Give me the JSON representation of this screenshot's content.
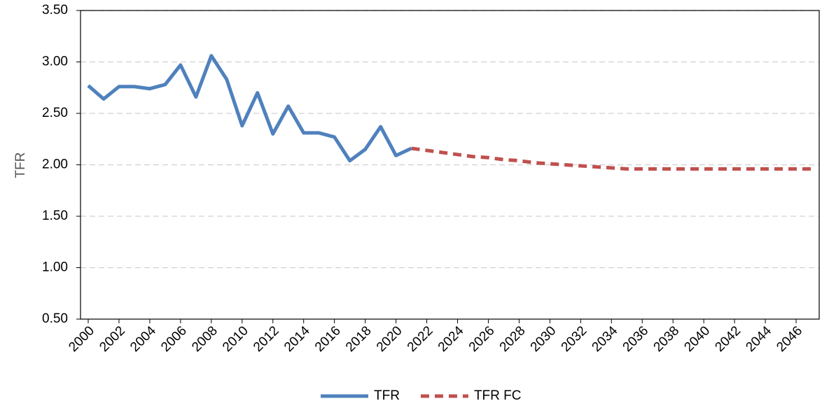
{
  "chart_data": {
    "type": "line",
    "y_label": "TFR",
    "x": [
      2000,
      2001,
      2002,
      2003,
      2004,
      2005,
      2006,
      2007,
      2008,
      2009,
      2010,
      2011,
      2012,
      2013,
      2014,
      2015,
      2016,
      2017,
      2018,
      2019,
      2020,
      2021,
      2022,
      2023,
      2024,
      2025,
      2026,
      2027,
      2028,
      2029,
      2030,
      2031,
      2032,
      2033,
      2034,
      2035,
      2036,
      2037,
      2038,
      2039,
      2040,
      2041,
      2042,
      2043,
      2044,
      2045,
      2046,
      2047
    ],
    "xlim": [
      1999.5,
      2047.5
    ],
    "xticks": [
      2000,
      2002,
      2004,
      2006,
      2008,
      2010,
      2012,
      2014,
      2016,
      2018,
      2020,
      2022,
      2024,
      2026,
      2028,
      2030,
      2032,
      2034,
      2036,
      2038,
      2040,
      2042,
      2044,
      2046
    ],
    "ylim": [
      0.5,
      3.5
    ],
    "yticks": [
      {
        "value": 0.5,
        "label": "0.50"
      },
      {
        "value": 1,
        "label": "1.00"
      },
      {
        "value": 1.5,
        "label": "1.50"
      },
      {
        "value": 2,
        "label": "2.00"
      },
      {
        "value": 2.5,
        "label": "2.50"
      },
      {
        "value": 3,
        "label": "3.00"
      },
      {
        "value": 3.5,
        "label": "3.50"
      }
    ],
    "grid": true,
    "legend": "bottom",
    "series": [
      {
        "name": "TFR",
        "color": "#4f81bd",
        "dash": false,
        "values": [
          2.77,
          2.64,
          2.76,
          2.76,
          2.74,
          2.78,
          2.97,
          2.66,
          3.06,
          2.83,
          2.38,
          2.7,
          2.3,
          2.57,
          2.31,
          2.31,
          2.27,
          2.04,
          2.15,
          2.37,
          2.09,
          2.16,
          null,
          null,
          null,
          null,
          null,
          null,
          null,
          null,
          null,
          null,
          null,
          null,
          null,
          null,
          null,
          null,
          null,
          null,
          null,
          null,
          null,
          null,
          null,
          null,
          null,
          null
        ]
      },
      {
        "name": "TFR FC",
        "color": "#c0504d",
        "dash": true,
        "values": [
          null,
          null,
          null,
          null,
          null,
          null,
          null,
          null,
          null,
          null,
          null,
          null,
          null,
          null,
          null,
          null,
          null,
          null,
          null,
          null,
          null,
          2.16,
          2.14,
          2.12,
          2.1,
          2.08,
          2.07,
          2.05,
          2.04,
          2.02,
          2.01,
          2.0,
          1.99,
          1.98,
          1.97,
          1.96,
          1.96,
          1.96,
          1.96,
          1.96,
          1.96,
          1.96,
          1.96,
          1.96,
          1.96,
          1.96,
          1.96,
          1.96
        ]
      }
    ]
  }
}
